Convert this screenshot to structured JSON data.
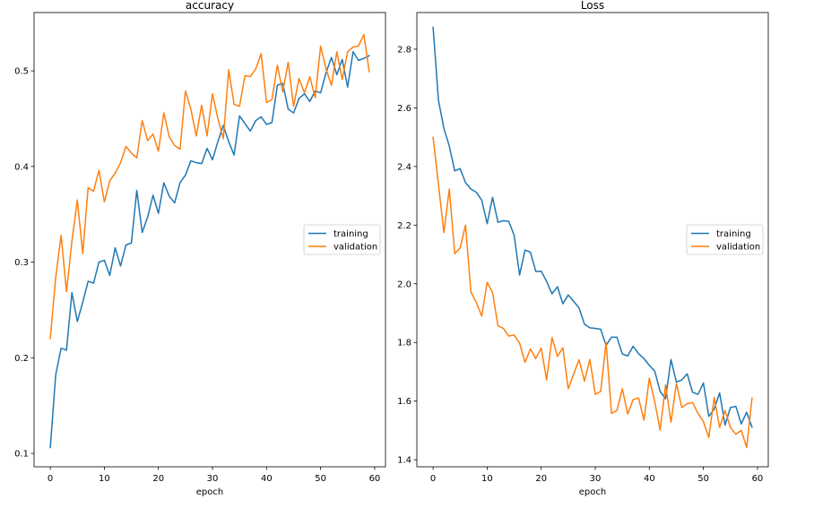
{
  "colors": {
    "training": "#1f77b4",
    "validation": "#ff7f0e"
  },
  "chart_data": [
    {
      "type": "line",
      "title": "accuracy",
      "xlabel": "epoch",
      "ylabel": "",
      "xlim": [
        -3,
        62
      ],
      "ylim": [
        0.086,
        0.561
      ],
      "xticks": [
        0,
        10,
        20,
        30,
        40,
        50,
        60
      ],
      "yticks": [
        0.1,
        0.2,
        0.3,
        0.4,
        0.5
      ],
      "ytick_labels": [
        "0.1",
        "0.2",
        "0.3",
        "0.4",
        "0.5"
      ],
      "grid": false,
      "legend": "center-right",
      "x": [
        0,
        1,
        2,
        3,
        4,
        5,
        6,
        7,
        8,
        9,
        10,
        11,
        12,
        13,
        14,
        15,
        16,
        17,
        18,
        19,
        20,
        21,
        22,
        23,
        24,
        25,
        26,
        27,
        28,
        29,
        30,
        31,
        32,
        33,
        34,
        35,
        36,
        37,
        38,
        39,
        40,
        41,
        42,
        43,
        44,
        45,
        46,
        47,
        48,
        49,
        50,
        51,
        52,
        53,
        54,
        55,
        56,
        57,
        58,
        59
      ],
      "series": [
        {
          "name": "training",
          "color_key": "training",
          "values": [
            0.106,
            0.182,
            0.21,
            0.208,
            0.268,
            0.238,
            0.258,
            0.28,
            0.278,
            0.3,
            0.302,
            0.286,
            0.315,
            0.296,
            0.318,
            0.32,
            0.375,
            0.331,
            0.347,
            0.37,
            0.351,
            0.383,
            0.369,
            0.362,
            0.383,
            0.391,
            0.406,
            0.404,
            0.403,
            0.419,
            0.407,
            0.426,
            0.443,
            0.426,
            0.412,
            0.453,
            0.445,
            0.437,
            0.448,
            0.452,
            0.444,
            0.446,
            0.485,
            0.487,
            0.46,
            0.456,
            0.471,
            0.476,
            0.468,
            0.479,
            0.477,
            0.498,
            0.514,
            0.496,
            0.512,
            0.483,
            0.52,
            0.511,
            0.513,
            0.516
          ]
        },
        {
          "name": "validation",
          "color_key": "validation",
          "values": [
            0.22,
            0.284,
            0.328,
            0.269,
            0.322,
            0.365,
            0.309,
            0.378,
            0.374,
            0.396,
            0.363,
            0.385,
            0.393,
            0.404,
            0.421,
            0.414,
            0.409,
            0.448,
            0.427,
            0.434,
            0.416,
            0.456,
            0.431,
            0.422,
            0.418,
            0.479,
            0.46,
            0.432,
            0.464,
            0.432,
            0.476,
            0.45,
            0.429,
            0.501,
            0.465,
            0.463,
            0.495,
            0.494,
            0.502,
            0.518,
            0.467,
            0.47,
            0.506,
            0.478,
            0.509,
            0.463,
            0.492,
            0.477,
            0.494,
            0.472,
            0.526,
            0.502,
            0.485,
            0.52,
            0.491,
            0.52,
            0.525,
            0.526,
            0.538,
            0.499
          ]
        }
      ]
    },
    {
      "type": "line",
      "title": "Loss",
      "xlabel": "epoch",
      "ylabel": "",
      "xlim": [
        -3,
        62
      ],
      "ylim": [
        1.376,
        2.925
      ],
      "xticks": [
        0,
        10,
        20,
        30,
        40,
        50,
        60
      ],
      "yticks": [
        1.4,
        1.6,
        1.8,
        2.0,
        2.2,
        2.4,
        2.6,
        2.8
      ],
      "ytick_labels": [
        "1.4",
        "1.6",
        "1.8",
        "2.0",
        "2.2",
        "2.4",
        "2.6",
        "2.8"
      ],
      "grid": false,
      "legend": "center-right",
      "x": [
        0,
        1,
        2,
        3,
        4,
        5,
        6,
        7,
        8,
        9,
        10,
        11,
        12,
        13,
        14,
        15,
        16,
        17,
        18,
        19,
        20,
        21,
        22,
        23,
        24,
        25,
        26,
        27,
        28,
        29,
        30,
        31,
        32,
        33,
        34,
        35,
        36,
        37,
        38,
        39,
        40,
        41,
        42,
        43,
        44,
        45,
        46,
        47,
        48,
        49,
        50,
        51,
        52,
        53,
        54,
        55,
        56,
        57,
        58,
        59
      ],
      "series": [
        {
          "name": "training",
          "color_key": "training",
          "values": [
            2.875,
            2.625,
            2.53,
            2.47,
            2.385,
            2.393,
            2.345,
            2.323,
            2.312,
            2.285,
            2.205,
            2.295,
            2.21,
            2.215,
            2.213,
            2.165,
            2.03,
            2.115,
            2.108,
            2.042,
            2.043,
            2.008,
            1.966,
            1.99,
            1.932,
            1.962,
            1.94,
            1.918,
            1.862,
            1.85,
            1.848,
            1.845,
            1.79,
            1.818,
            1.818,
            1.761,
            1.754,
            1.787,
            1.762,
            1.745,
            1.722,
            1.702,
            1.633,
            1.608,
            1.742,
            1.665,
            1.672,
            1.693,
            1.63,
            1.623,
            1.662,
            1.548,
            1.573,
            1.628,
            1.518,
            1.578,
            1.582,
            1.522,
            1.562,
            1.511
          ]
        },
        {
          "name": "validation",
          "color_key": "validation",
          "values": [
            2.5,
            2.338,
            2.175,
            2.323,
            2.103,
            2.122,
            2.2,
            1.972,
            1.936,
            1.89,
            2.005,
            1.97,
            1.857,
            1.848,
            1.822,
            1.825,
            1.798,
            1.732,
            1.778,
            1.745,
            1.781,
            1.672,
            1.817,
            1.752,
            1.782,
            1.642,
            1.692,
            1.741,
            1.668,
            1.742,
            1.623,
            1.633,
            1.8,
            1.558,
            1.568,
            1.642,
            1.556,
            1.605,
            1.611,
            1.535,
            1.678,
            1.598,
            1.501,
            1.656,
            1.528,
            1.66,
            1.578,
            1.591,
            1.595,
            1.558,
            1.53,
            1.476,
            1.612,
            1.51,
            1.568,
            1.51,
            1.487,
            1.5,
            1.442,
            1.611
          ]
        }
      ]
    }
  ]
}
